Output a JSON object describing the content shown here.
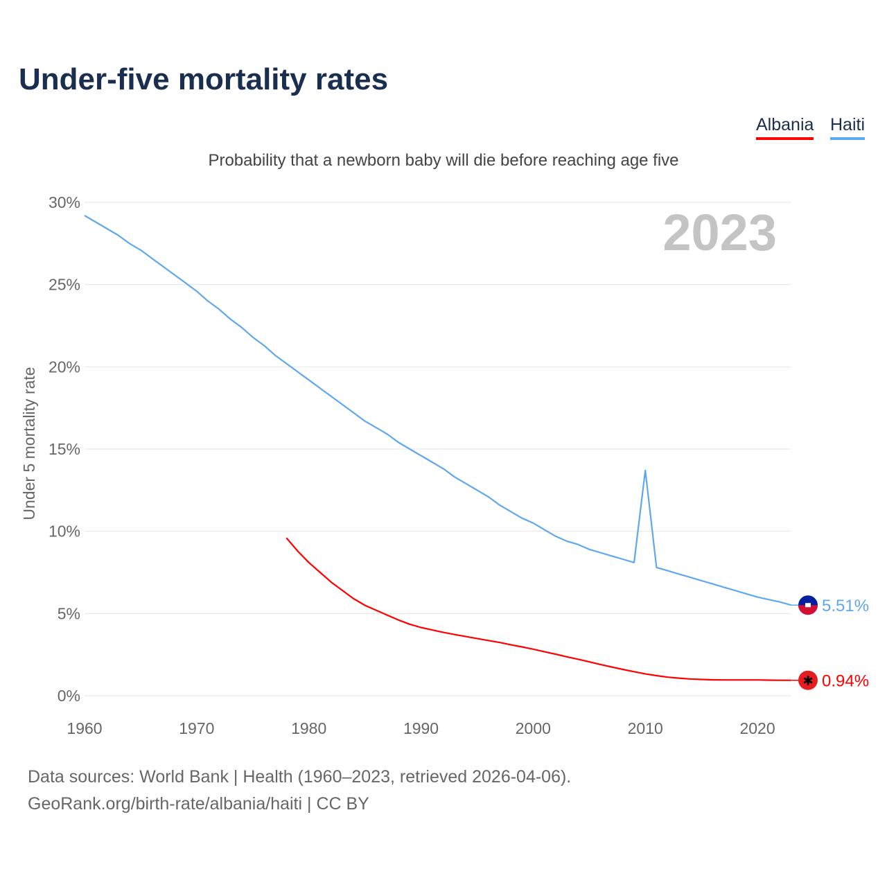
{
  "title": "Under-five mortality rates",
  "subtitle": "Probability that a newborn baby will die before reaching age five",
  "legend": [
    "Albania",
    "Haiti"
  ],
  "year_label": "2023",
  "sources": [
    "Data sources: World Bank | Health (1960–2023, retrieved 2026-04-06).",
    "GeoRank.org/birth-rate/albania/haiti | CC BY"
  ],
  "chart_data": {
    "type": "line",
    "title": "Under-five mortality rates",
    "ylabel": "Under 5 mortality rate",
    "xlabel": "",
    "xlim": [
      1960,
      2023
    ],
    "ylim": [
      0,
      30
    ],
    "xticks": [
      1960,
      1970,
      1980,
      1990,
      2000,
      2010,
      2020
    ],
    "yticks": [
      0,
      5,
      10,
      15,
      20,
      25,
      30
    ],
    "ytick_labels": [
      "0%",
      "5%",
      "10%",
      "15%",
      "20%",
      "25%",
      "30%"
    ],
    "grid": true,
    "series": [
      {
        "name": "Haiti",
        "color": "#5da8ee",
        "start": 1960,
        "end_label": "5.51%",
        "values": [
          29.2,
          28.8,
          28.4,
          28.0,
          27.5,
          27.1,
          26.6,
          26.1,
          25.6,
          25.1,
          24.6,
          24.0,
          23.5,
          22.9,
          22.4,
          21.8,
          21.3,
          20.7,
          20.2,
          19.7,
          19.2,
          18.7,
          18.2,
          17.7,
          17.2,
          16.7,
          16.3,
          15.9,
          15.4,
          15.0,
          14.6,
          14.2,
          13.8,
          13.3,
          12.9,
          12.5,
          12.1,
          11.6,
          11.2,
          10.8,
          10.5,
          10.1,
          9.7,
          9.4,
          9.2,
          8.9,
          8.7,
          8.5,
          8.3,
          8.1,
          13.7,
          7.8,
          7.6,
          7.4,
          7.2,
          7.0,
          6.8,
          6.6,
          6.4,
          6.2,
          6.0,
          5.85,
          5.7,
          5.51
        ]
      },
      {
        "name": "Albania",
        "color": "#ff0000",
        "start": 1978,
        "end_label": "0.94%",
        "values": [
          9.6,
          8.8,
          8.1,
          7.5,
          6.9,
          6.4,
          5.9,
          5.5,
          5.2,
          4.9,
          4.6,
          4.35,
          4.15,
          4.0,
          3.85,
          3.72,
          3.6,
          3.48,
          3.36,
          3.24,
          3.1,
          2.97,
          2.83,
          2.68,
          2.53,
          2.37,
          2.22,
          2.06,
          1.9,
          1.75,
          1.6,
          1.46,
          1.33,
          1.22,
          1.13,
          1.07,
          1.02,
          0.99,
          0.97,
          0.96,
          0.96,
          0.96,
          0.96,
          0.95,
          0.94,
          0.94
        ]
      }
    ]
  }
}
